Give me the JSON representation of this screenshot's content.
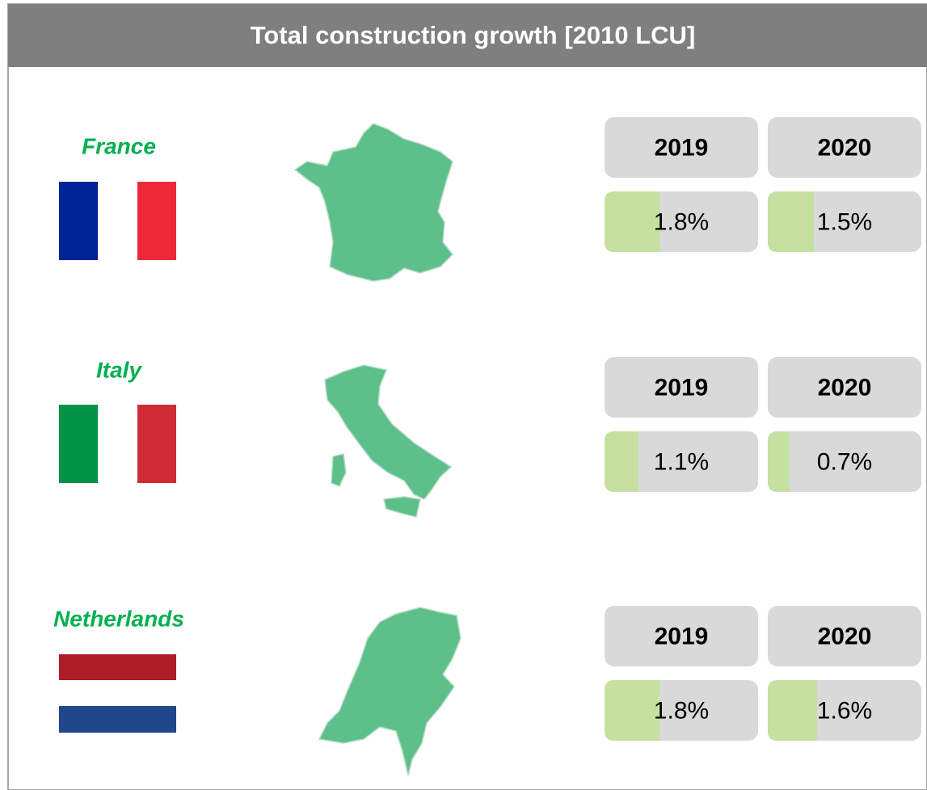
{
  "title": "Total construction growth [2010 LCU]",
  "xlim": [
    0,
    5
  ],
  "countries": [
    {
      "name": "France",
      "years": [
        "2019",
        "2020"
      ],
      "values": [
        1.8,
        1.5
      ],
      "value_labels": [
        "1.8%",
        "1.5%"
      ]
    },
    {
      "name": "Italy",
      "years": [
        "2019",
        "2020"
      ],
      "values": [
        1.1,
        0.7
      ],
      "value_labels": [
        "1.1%",
        "0.7%"
      ]
    },
    {
      "name": "Netherlands",
      "years": [
        "2019",
        "2020"
      ],
      "values": [
        1.8,
        1.6
      ],
      "value_labels": [
        "1.8%",
        "1.6%"
      ]
    }
  ]
}
